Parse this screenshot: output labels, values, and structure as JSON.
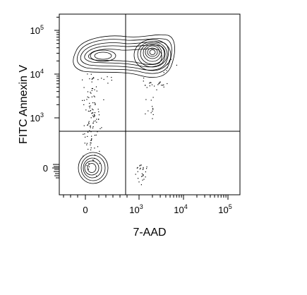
{
  "chart_data": {
    "type": "contour",
    "xlabel": "7-AAD",
    "ylabel": "FITC Annexin V",
    "x_scale": "biexponential",
    "y_scale": "biexponential",
    "x_ticks": [
      {
        "value": 0,
        "base": "0",
        "exp": ""
      },
      {
        "value": 1000,
        "base": "10",
        "exp": "3"
      },
      {
        "value": 10000,
        "base": "10",
        "exp": "4"
      },
      {
        "value": 100000,
        "base": "10",
        "exp": "5"
      }
    ],
    "y_ticks": [
      {
        "value": 0,
        "base": "0",
        "exp": ""
      },
      {
        "value": 1000,
        "base": "10",
        "exp": "3"
      },
      {
        "value": 10000,
        "base": "10",
        "exp": "4"
      },
      {
        "value": 100000,
        "base": "10",
        "exp": "5"
      }
    ],
    "quadrant_gate": {
      "x": 600,
      "y": 500
    },
    "populations": [
      {
        "name": "",
        "center": [
          30,
          10
        ],
        "spread": "tight"
      },
      {
        "name": "",
        "center": [
          150,
          25000
        ],
        "spread": "broad"
      },
      {
        "name": "",
        "center": [
          2500,
          30000
        ],
        "spread": "dense"
      }
    ],
    "grid": false,
    "legend": "none",
    "colors": {
      "contour": "#000000",
      "axis": "#000000",
      "background": "#ffffff"
    }
  }
}
